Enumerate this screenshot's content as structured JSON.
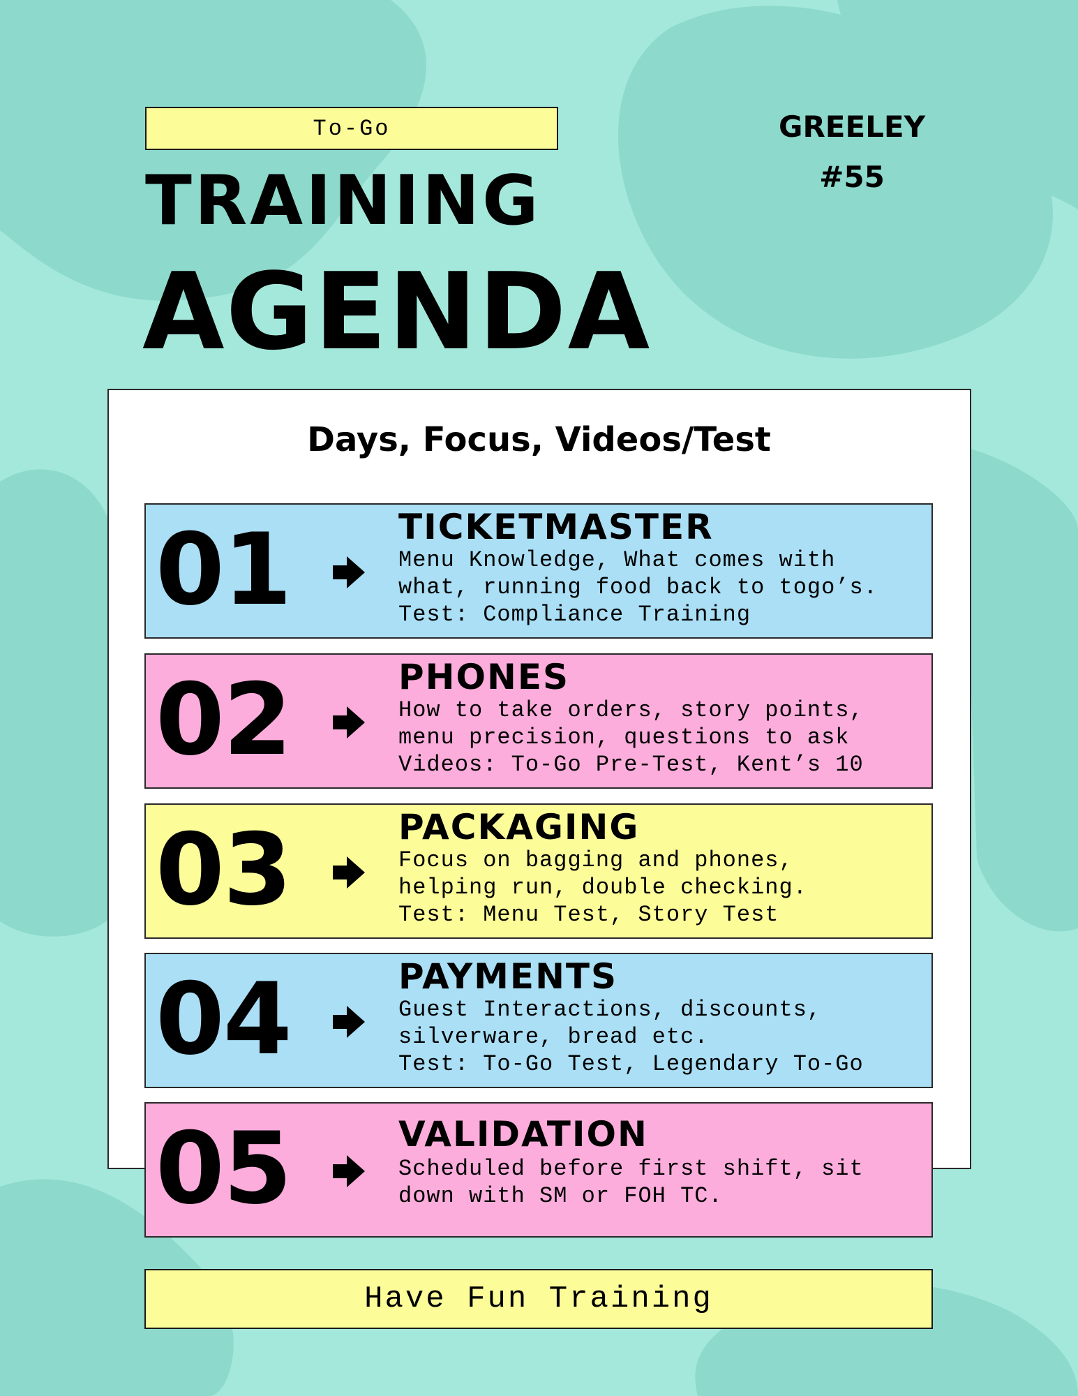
{
  "header": {
    "tag": "To-Go",
    "title_line1": "TRAINING",
    "title_line2": "AGENDA",
    "location_name": "GREELEY",
    "location_number": "#55"
  },
  "panel": {
    "heading": "Days, Focus, Videos/Test"
  },
  "days": [
    {
      "number": "01",
      "title": "TICKETMASTER",
      "lines": [
        "Menu Knowledge, What comes with",
        "what, running food back to togo’s.",
        "Test: Compliance Training"
      ]
    },
    {
      "number": "02",
      "title": "PHONES",
      "lines": [
        "How to take orders, story points,",
        "menu precision, questions to ask",
        "Videos: To-Go Pre-Test, Kent’s 10"
      ]
    },
    {
      "number": "03",
      "title": "PACKAGING",
      "lines": [
        "Focus on bagging and phones,",
        "helping run, double checking.",
        "Test: Menu Test, Story Test"
      ]
    },
    {
      "number": "04",
      "title": "PAYMENTS",
      "lines": [
        "Guest Interactions, discounts,",
        "silverware, bread etc.",
        "Test: To-Go Test, Legendary To-Go"
      ]
    },
    {
      "number": "05",
      "title": "VALIDATION",
      "lines": [
        "Scheduled before first shift, sit",
        "down with SM or FOH TC."
      ]
    }
  ],
  "footer": {
    "text": "Have Fun Training"
  },
  "colors": {
    "background": "#a4e8dc",
    "blob": "#8dd9cc",
    "blue_row": "#aadff5",
    "pink_row": "#fcaddc",
    "yellow_accent": "#fcfc99"
  },
  "icons": {
    "row_arrow": "arrow-right-icon"
  }
}
